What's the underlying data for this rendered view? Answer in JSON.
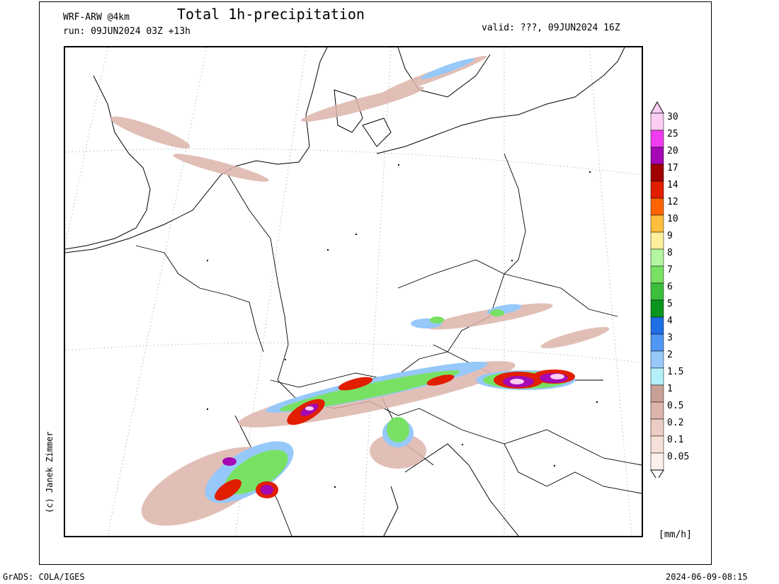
{
  "header": {
    "model": "WRF-ARW @4km",
    "run": "run: 09JUN2024 03Z +13h",
    "title": "Total 1h-precipitation",
    "valid": "valid: ???, 09JUN2024 16Z"
  },
  "colorbar": {
    "unit": "[mm/h]",
    "levels": [
      "30",
      "25",
      "20",
      "17",
      "14",
      "12",
      "10",
      "9",
      "8",
      "7",
      "6",
      "5",
      "4",
      "3",
      "2",
      "1.5",
      "1",
      "0.5",
      "0.2",
      "0.1",
      "0.05"
    ],
    "colors": [
      "#fbcdf3",
      "#f03cf0",
      "#a508b4",
      "#a00000",
      "#e11e00",
      "#ff6400",
      "#ffbe3c",
      "#ffef9c",
      "#b4f5a0",
      "#78e164",
      "#3cbe3c",
      "#0a961e",
      "#1e6ee6",
      "#5096f5",
      "#96c8fa",
      "#b4f0fa",
      "#c8a096",
      "#dcb4aa",
      "#ebcdc3",
      "#f5e1d7",
      "#fbf0eb"
    ]
  },
  "copyright": "(c) Janek Zimmer",
  "footer": {
    "left": "GrADS: COLA/IGES",
    "right": "2024-06-09-08:15"
  }
}
